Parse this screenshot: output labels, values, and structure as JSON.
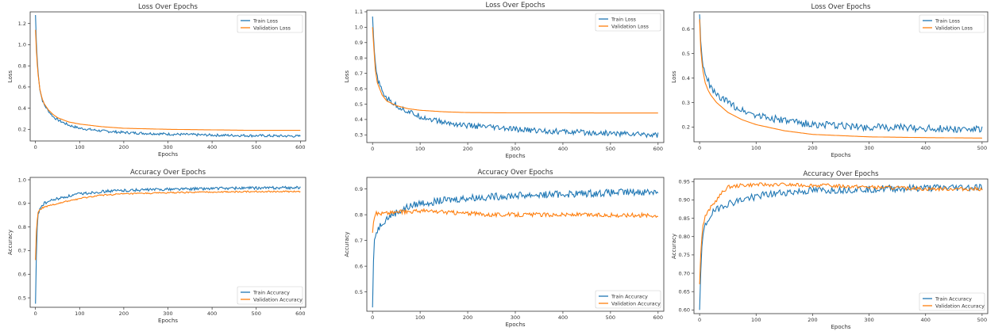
{
  "colors": {
    "train": "#1f77b4",
    "validation": "#ff7f0e",
    "axis": "#333333"
  },
  "chart_data": [
    {
      "type": "line",
      "title": "Loss Over Epochs",
      "xlabel": "Epochs",
      "ylabel": "Loss",
      "xlim": [
        -12,
        612
      ],
      "ylim": [
        0.09,
        1.31
      ],
      "xticks": [
        0,
        100,
        200,
        300,
        400,
        500,
        600
      ],
      "yticks": [
        0.2,
        0.4,
        0.6,
        0.8,
        1.0,
        1.2
      ],
      "ytick_labels": [
        "0.2",
        "0.4",
        "0.6",
        "0.8",
        "1.0",
        "1.2"
      ],
      "legend_position": "top-right",
      "series": [
        {
          "name": "Train Loss",
          "color": "#1f77b4",
          "noise": 0.012,
          "points": [
            [
              0,
              1.28
            ],
            [
              2,
              1.02
            ],
            [
              5,
              0.78
            ],
            [
              10,
              0.58
            ],
            [
              15,
              0.48
            ],
            [
              20,
              0.43
            ],
            [
              30,
              0.37
            ],
            [
              40,
              0.32
            ],
            [
              50,
              0.29
            ],
            [
              75,
              0.24
            ],
            [
              100,
              0.21
            ],
            [
              150,
              0.185
            ],
            [
              200,
              0.17
            ],
            [
              300,
              0.155
            ],
            [
              400,
              0.145
            ],
            [
              500,
              0.14
            ],
            [
              600,
              0.135
            ]
          ]
        },
        {
          "name": "Validation Loss",
          "color": "#ff7f0e",
          "noise": 0,
          "points": [
            [
              0,
              1.14
            ],
            [
              2,
              0.95
            ],
            [
              5,
              0.75
            ],
            [
              10,
              0.58
            ],
            [
              15,
              0.49
            ],
            [
              20,
              0.44
            ],
            [
              30,
              0.38
            ],
            [
              40,
              0.34
            ],
            [
              50,
              0.31
            ],
            [
              75,
              0.27
            ],
            [
              100,
              0.25
            ],
            [
              150,
              0.225
            ],
            [
              200,
              0.21
            ],
            [
              300,
              0.2
            ],
            [
              400,
              0.195
            ],
            [
              500,
              0.19
            ],
            [
              600,
              0.19
            ]
          ]
        }
      ]
    },
    {
      "type": "line",
      "title": "Loss Over Epochs",
      "xlabel": "Epochs",
      "ylabel": "Loss",
      "xlim": [
        -12,
        612
      ],
      "ylim": [
        0.25,
        1.11
      ],
      "xticks": [
        0,
        100,
        200,
        300,
        400,
        500,
        600
      ],
      "yticks": [
        0.3,
        0.4,
        0.5,
        0.6,
        0.7,
        0.8,
        0.9,
        1.0,
        1.1
      ],
      "ytick_labels": [
        "0.3",
        "0.4",
        "0.5",
        "0.6",
        "0.7",
        "0.8",
        "0.9",
        "1.0",
        "1.1"
      ],
      "legend_position": "top-right",
      "series": [
        {
          "name": "Train Loss",
          "color": "#1f77b4",
          "noise": 0.018,
          "points": [
            [
              0,
              1.07
            ],
            [
              3,
              0.88
            ],
            [
              6,
              0.75
            ],
            [
              10,
              0.67
            ],
            [
              20,
              0.58
            ],
            [
              30,
              0.54
            ],
            [
              50,
              0.49
            ],
            [
              75,
              0.45
            ],
            [
              100,
              0.42
            ],
            [
              150,
              0.38
            ],
            [
              200,
              0.36
            ],
            [
              300,
              0.335
            ],
            [
              400,
              0.32
            ],
            [
              500,
              0.31
            ],
            [
              600,
              0.3
            ]
          ]
        },
        {
          "name": "Validation Loss",
          "color": "#ff7f0e",
          "noise": 0,
          "points": [
            [
              0,
              1.0
            ],
            [
              3,
              0.85
            ],
            [
              6,
              0.72
            ],
            [
              10,
              0.64
            ],
            [
              20,
              0.56
            ],
            [
              30,
              0.52
            ],
            [
              50,
              0.49
            ],
            [
              75,
              0.47
            ],
            [
              100,
              0.46
            ],
            [
              150,
              0.45
            ],
            [
              200,
              0.445
            ],
            [
              300,
              0.443
            ],
            [
              400,
              0.443
            ],
            [
              500,
              0.442
            ],
            [
              600,
              0.442
            ]
          ]
        }
      ]
    },
    {
      "type": "line",
      "title": "Loss Over Epochs",
      "xlabel": "Epochs",
      "ylabel": "Loss",
      "xlim": [
        -10,
        510
      ],
      "ylim": [
        0.14,
        0.67
      ],
      "xticks": [
        0,
        100,
        200,
        300,
        400,
        500
      ],
      "yticks": [
        0.2,
        0.3,
        0.4,
        0.5,
        0.6
      ],
      "ytick_labels": [
        "0.2",
        "0.3",
        "0.4",
        "0.5",
        "0.6"
      ],
      "legend_position": "top-right",
      "series": [
        {
          "name": "Train Loss",
          "color": "#1f77b4",
          "noise": 0.015,
          "points": [
            [
              0,
              0.66
            ],
            [
              2,
              0.55
            ],
            [
              5,
              0.46
            ],
            [
              10,
              0.41
            ],
            [
              15,
              0.39
            ],
            [
              20,
              0.36
            ],
            [
              30,
              0.33
            ],
            [
              50,
              0.3
            ],
            [
              75,
              0.27
            ],
            [
              100,
              0.25
            ],
            [
              150,
              0.225
            ],
            [
              200,
              0.21
            ],
            [
              300,
              0.2
            ],
            [
              400,
              0.195
            ],
            [
              500,
              0.19
            ]
          ]
        },
        {
          "name": "Validation Loss",
          "color": "#ff7f0e",
          "noise": 0,
          "points": [
            [
              0,
              0.64
            ],
            [
              2,
              0.52
            ],
            [
              5,
              0.44
            ],
            [
              10,
              0.38
            ],
            [
              15,
              0.35
            ],
            [
              20,
              0.33
            ],
            [
              30,
              0.3
            ],
            [
              50,
              0.26
            ],
            [
              75,
              0.23
            ],
            [
              100,
              0.21
            ],
            [
              150,
              0.185
            ],
            [
              200,
              0.17
            ],
            [
              250,
              0.165
            ],
            [
              300,
              0.16
            ],
            [
              400,
              0.157
            ],
            [
              500,
              0.155
            ]
          ]
        }
      ]
    },
    {
      "type": "line",
      "title": "Accuracy Over Epochs",
      "xlabel": "Epochs",
      "ylabel": "Accuracy",
      "xlim": [
        -12,
        612
      ],
      "ylim": [
        0.46,
        1.01
      ],
      "xticks": [
        0,
        100,
        200,
        300,
        400,
        500,
        600
      ],
      "yticks": [
        0.5,
        0.6,
        0.7,
        0.8,
        0.9,
        1.0
      ],
      "ytick_labels": [
        "0.5",
        "0.6",
        "0.7",
        "0.8",
        "0.9",
        "1.0"
      ],
      "legend_position": "bottom-right",
      "series": [
        {
          "name": "Train Accuracy",
          "color": "#1f77b4",
          "noise": 0.006,
          "points": [
            [
              0,
              0.475
            ],
            [
              2,
              0.68
            ],
            [
              4,
              0.8
            ],
            [
              6,
              0.85
            ],
            [
              10,
              0.88
            ],
            [
              20,
              0.9
            ],
            [
              40,
              0.915
            ],
            [
              75,
              0.93
            ],
            [
              100,
              0.94
            ],
            [
              150,
              0.95
            ],
            [
              200,
              0.955
            ],
            [
              300,
              0.96
            ],
            [
              400,
              0.963
            ],
            [
              500,
              0.965
            ],
            [
              600,
              0.967
            ]
          ]
        },
        {
          "name": "Validation Accuracy",
          "color": "#ff7f0e",
          "noise": 0.003,
          "points": [
            [
              0,
              0.66
            ],
            [
              2,
              0.78
            ],
            [
              4,
              0.83
            ],
            [
              6,
              0.86
            ],
            [
              10,
              0.875
            ],
            [
              20,
              0.885
            ],
            [
              40,
              0.895
            ],
            [
              75,
              0.91
            ],
            [
              100,
              0.92
            ],
            [
              150,
              0.935
            ],
            [
              200,
              0.94
            ],
            [
              300,
              0.945
            ],
            [
              400,
              0.948
            ],
            [
              500,
              0.95
            ],
            [
              600,
              0.95
            ]
          ]
        }
      ]
    },
    {
      "type": "line",
      "title": "Accuracy Over Epochs",
      "xlabel": "Epochs",
      "ylabel": "Accuracy",
      "xlim": [
        -12,
        612
      ],
      "ylim": [
        0.425,
        0.945
      ],
      "xticks": [
        0,
        100,
        200,
        300,
        400,
        500,
        600
      ],
      "yticks": [
        0.5,
        0.6,
        0.7,
        0.8,
        0.9
      ],
      "ytick_labels": [
        "0.5",
        "0.6",
        "0.7",
        "0.8",
        "0.9"
      ],
      "legend_position": "bottom-right",
      "series": [
        {
          "name": "Train Accuracy",
          "color": "#1f77b4",
          "noise": 0.014,
          "points": [
            [
              0,
              0.44
            ],
            [
              2,
              0.62
            ],
            [
              4,
              0.7
            ],
            [
              6,
              0.72
            ],
            [
              10,
              0.74
            ],
            [
              20,
              0.77
            ],
            [
              40,
              0.8
            ],
            [
              75,
              0.83
            ],
            [
              100,
              0.845
            ],
            [
              150,
              0.855
            ],
            [
              200,
              0.865
            ],
            [
              300,
              0.875
            ],
            [
              400,
              0.88
            ],
            [
              500,
              0.885
            ],
            [
              600,
              0.89
            ]
          ]
        },
        {
          "name": "Validation Accuracy",
          "color": "#ff7f0e",
          "noise": 0.008,
          "points": [
            [
              0,
              0.73
            ],
            [
              3,
              0.79
            ],
            [
              6,
              0.805
            ],
            [
              20,
              0.805
            ],
            [
              50,
              0.81
            ],
            [
              100,
              0.815
            ],
            [
              150,
              0.81
            ],
            [
              200,
              0.805
            ],
            [
              250,
              0.8
            ],
            [
              300,
              0.8
            ],
            [
              400,
              0.8
            ],
            [
              500,
              0.798
            ],
            [
              600,
              0.798
            ]
          ]
        }
      ]
    },
    {
      "type": "line",
      "title": "Accuracy Over Epochs",
      "xlabel": "Epochs",
      "ylabel": "Accuracy",
      "xlim": [
        -10,
        510
      ],
      "ylim": [
        0.59,
        0.957
      ],
      "xticks": [
        0,
        100,
        200,
        300,
        400,
        500
      ],
      "yticks": [
        0.6,
        0.65,
        0.7,
        0.75,
        0.8,
        0.85,
        0.9,
        0.95
      ],
      "ytick_labels": [
        "0.60",
        "0.65",
        "0.70",
        "0.75",
        "0.80",
        "0.85",
        "0.90",
        "0.95"
      ],
      "legend_position": "bottom-right",
      "series": [
        {
          "name": "Train Accuracy",
          "color": "#1f77b4",
          "noise": 0.01,
          "points": [
            [
              0,
              0.6
            ],
            [
              2,
              0.7
            ],
            [
              4,
              0.77
            ],
            [
              6,
              0.8
            ],
            [
              10,
              0.83
            ],
            [
              20,
              0.86
            ],
            [
              40,
              0.885
            ],
            [
              75,
              0.9
            ],
            [
              100,
              0.91
            ],
            [
              150,
              0.92
            ],
            [
              200,
              0.925
            ],
            [
              300,
              0.93
            ],
            [
              400,
              0.932
            ],
            [
              500,
              0.935
            ]
          ]
        },
        {
          "name": "Validation Accuracy",
          "color": "#ff7f0e",
          "noise": 0.005,
          "points": [
            [
              0,
              0.67
            ],
            [
              3,
              0.79
            ],
            [
              6,
              0.83
            ],
            [
              10,
              0.855
            ],
            [
              20,
              0.88
            ],
            [
              30,
              0.9
            ],
            [
              40,
              0.92
            ],
            [
              50,
              0.935
            ],
            [
              75,
              0.94
            ],
            [
              100,
              0.942
            ],
            [
              200,
              0.94
            ],
            [
              300,
              0.935
            ],
            [
              400,
              0.93
            ],
            [
              500,
              0.93
            ]
          ]
        }
      ]
    }
  ]
}
